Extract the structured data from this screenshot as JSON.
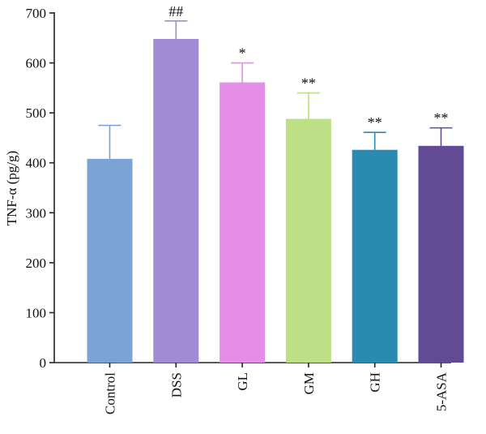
{
  "chart_data": {
    "type": "bar",
    "title": "",
    "xlabel": "",
    "ylabel": "TNF-α (pg/g)",
    "ylim": [
      0,
      700
    ],
    "yticks": [
      0,
      100,
      200,
      300,
      400,
      500,
      600,
      700
    ],
    "grid": false,
    "categories": [
      "Control",
      "DSS",
      "GL",
      "GM",
      "GH",
      "5-ASA"
    ],
    "values": [
      408,
      648,
      561,
      488,
      426,
      434
    ],
    "error_upper": [
      475,
      684,
      600,
      540,
      461,
      470
    ],
    "significance": [
      "",
      "##",
      "*",
      "**",
      "**",
      "**"
    ],
    "colors": [
      "#7ba3d6",
      "#a28ad6",
      "#e58ee8",
      "#bddf85",
      "#2a8bb0",
      "#624a94"
    ]
  }
}
